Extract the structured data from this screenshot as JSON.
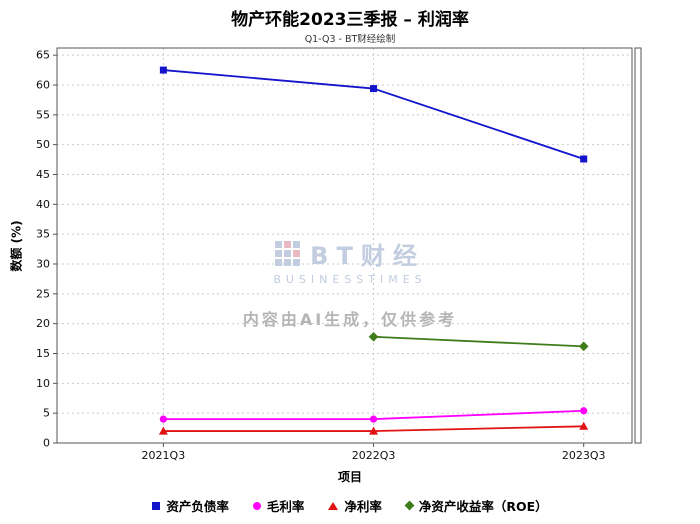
{
  "title": "物产环能2023三季报 – 利润率",
  "subtitle": "Q1-Q3 - BT财经绘制",
  "axis": {
    "xlabel": "项目",
    "ylabel": "数额 (%)"
  },
  "watermark": {
    "brand": "BT财经",
    "brand_sub": "BUSINESSTIMES",
    "disclaimer": "内容由AI生成，仅供参考"
  },
  "chart_data": {
    "type": "line",
    "title": "物产环能2023三季报 – 利润率",
    "subtitle": "Q1-Q3 - BT财经绘制",
    "xlabel": "项目",
    "ylabel": "数额 (%)",
    "categories": [
      "2021Q3",
      "2022Q3",
      "2023Q3"
    ],
    "series": [
      {
        "name": "资产负债率",
        "color": "#1414cc",
        "marker": "square",
        "values": [
          62.5,
          59.4,
          47.6
        ]
      },
      {
        "name": "毛利率",
        "color": "#ff00ff",
        "marker": "circle",
        "values": [
          4.0,
          4.0,
          5.4
        ]
      },
      {
        "name": "净利率",
        "color": "#e01212",
        "marker": "triangle",
        "values": [
          2.0,
          2.0,
          2.8
        ]
      },
      {
        "name": "净资产收益率（ROE）",
        "color": "#3e7d1a",
        "marker": "diamond",
        "values": [
          null,
          17.8,
          16.2
        ]
      }
    ],
    "ylim": [
      0,
      65
    ],
    "ytick_step": 5,
    "grid": true,
    "legend_position": "bottom"
  }
}
